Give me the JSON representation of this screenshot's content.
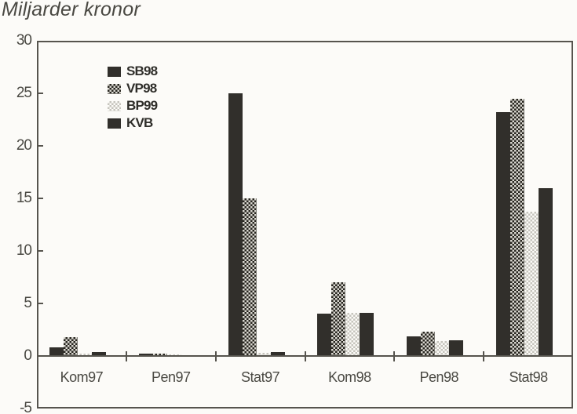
{
  "colors": {
    "paper": "#fcfbf8",
    "ink": "#4a4943",
    "ink_strong": "#2f2e2a",
    "frame": "#56544e",
    "bar_solid": "#312f2b",
    "checker_dark_fg": "#27251f",
    "checker_dark_bg": "#d9d7d0",
    "checker_light_fg": "#c6c4bd",
    "checker_light_bg": "#fcfbf8"
  },
  "chart_data": {
    "type": "bar",
    "title": "Miljarder kronor",
    "xlabel": "",
    "ylabel": "Miljarder kronor",
    "categories": [
      "Kom97",
      "Pen97",
      "Stat97",
      "Kom98",
      "Pen98",
      "Stat98"
    ],
    "series": [
      {
        "name": "SB98",
        "pattern": "solid",
        "values": [
          0.8,
          0.2,
          25.0,
          4.0,
          1.9,
          23.2
        ]
      },
      {
        "name": "VP98",
        "pattern": "checker-dark",
        "values": [
          1.8,
          0.2,
          15.0,
          7.0,
          2.3,
          24.5
        ]
      },
      {
        "name": "BP99",
        "pattern": "checker-light",
        "values": [
          0.2,
          0.15,
          0.3,
          4.1,
          1.4,
          13.7
        ]
      },
      {
        "name": "KVB",
        "pattern": "solid",
        "values": [
          0.35,
          0.05,
          0.4,
          4.1,
          1.5,
          16.0
        ]
      }
    ],
    "ylim": [
      -5,
      30
    ],
    "yticks": [
      30,
      25,
      20,
      15,
      10,
      5,
      0,
      -5
    ],
    "grid": false,
    "legend_position": "top-left-inside"
  }
}
